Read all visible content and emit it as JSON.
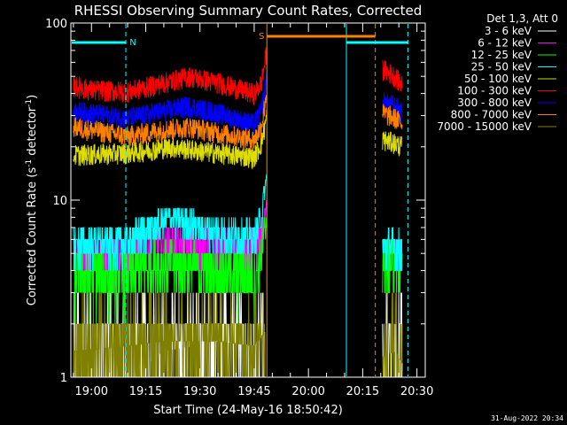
{
  "chart_data": {
    "type": "line",
    "title": "RHESSI Observing Summary Count Rates, Corrected",
    "xlabel": "Start Time (24-May-16 18:50:42)",
    "ylabel_parts": [
      "Corrected Count Rate (s",
      "-1",
      " detector",
      "-1",
      ")"
    ],
    "yscale": "log",
    "ylim": [
      1,
      100
    ],
    "y_ticks": [
      "1",
      "10",
      "100"
    ],
    "xlim_min": [
      -5.7,
      92.3
    ],
    "x_ticks": [
      {
        "label": "19:00",
        "min": 0
      },
      {
        "label": "19:15",
        "min": 15
      },
      {
        "label": "19:30",
        "min": 30
      },
      {
        "label": "19:45",
        "min": 45
      },
      {
        "label": "20:00",
        "min": 60
      },
      {
        "label": "20:15",
        "min": 75
      },
      {
        "label": "20:30",
        "min": 90
      }
    ],
    "legend_title": "Det 1,3, Att 0",
    "series": [
      {
        "name": "3 - 6 keV",
        "color": "#ffffff",
        "segments": [
          [
            [
              -5,
              1.0
            ],
            [
              10,
              1.0
            ],
            [
              20,
              1.4
            ],
            [
              35,
              1.6
            ],
            [
              45,
              1.5
            ],
            [
              48,
              1.8
            ]
          ],
          [
            [
              80.5,
              1.3
            ],
            [
              84,
              1.4
            ],
            [
              86,
              1.2
            ]
          ]
        ]
      },
      {
        "name": "6 - 12 keV",
        "color": "#ff00ff",
        "segments": [
          [
            [
              -5,
              4.9
            ],
            [
              10,
              5.0
            ],
            [
              20,
              5.6
            ],
            [
              30,
              5.4
            ],
            [
              45,
              5.0
            ],
            [
              47,
              6.0
            ],
            [
              48.5,
              9.0
            ]
          ],
          [
            [
              80.5,
              4.8
            ],
            [
              84,
              5.0
            ],
            [
              86,
              4.6
            ]
          ]
        ]
      },
      {
        "name": "12 - 25 keV",
        "color": "#00ff00",
        "segments": [
          [
            [
              -5,
              3.8
            ],
            [
              10,
              3.9
            ],
            [
              20,
              4.4
            ],
            [
              30,
              4.1
            ],
            [
              45,
              3.8
            ],
            [
              47,
              5.0
            ],
            [
              48.5,
              8.0
            ]
          ],
          [
            [
              80.5,
              4.3
            ],
            [
              84,
              4.5
            ],
            [
              86,
              4.0
            ]
          ]
        ]
      },
      {
        "name": "25 - 50 keV",
        "color": "#00ffff",
        "segments": [
          [
            [
              -5,
              5.6
            ],
            [
              10,
              5.8
            ],
            [
              22,
              8.0
            ],
            [
              30,
              7.0
            ],
            [
              45,
              6.0
            ],
            [
              47,
              8.0
            ],
            [
              48.5,
              14.0
            ]
          ],
          [
            [
              80.5,
              5.3
            ],
            [
              84,
              5.4
            ],
            [
              86,
              5.0
            ]
          ]
        ]
      },
      {
        "name": "50 - 100 keV",
        "color": "#dddd00",
        "segments": [
          [
            [
              -5,
              18
            ],
            [
              10,
              18.5
            ],
            [
              22,
              20
            ],
            [
              30,
              19
            ],
            [
              45,
              17.5
            ],
            [
              47,
              21
            ],
            [
              48.5,
              30
            ]
          ],
          [
            [
              80.5,
              22
            ],
            [
              84,
              21
            ],
            [
              86,
              20
            ]
          ]
        ]
      },
      {
        "name": "100 - 300 keV",
        "color": "#ff0000",
        "segments": [
          [
            [
              -5,
              44
            ],
            [
              0,
              42
            ],
            [
              10,
              41
            ],
            [
              20,
              46
            ],
            [
              27,
              50
            ],
            [
              35,
              46
            ],
            [
              45,
              40
            ],
            [
              47,
              46
            ],
            [
              48.5,
              70
            ]
          ],
          [
            [
              80.5,
              55
            ],
            [
              84,
              50
            ],
            [
              86,
              44
            ]
          ]
        ]
      },
      {
        "name": "300 - 800 keV",
        "color": "#0000ff",
        "segments": [
          [
            [
              -5,
              32
            ],
            [
              10,
              29
            ],
            [
              20,
              32
            ],
            [
              27,
              34
            ],
            [
              35,
              31
            ],
            [
              45,
              27
            ],
            [
              47,
              32
            ],
            [
              48.5,
              50
            ]
          ],
          [
            [
              80.5,
              36
            ],
            [
              84,
              34
            ],
            [
              86,
              31
            ]
          ]
        ]
      },
      {
        "name": "800 - 7000 keV",
        "color": "#ff8000",
        "segments": [
          [
            [
              -5,
              26
            ],
            [
              10,
              23
            ],
            [
              20,
              25
            ],
            [
              27,
              26
            ],
            [
              35,
              24
            ],
            [
              45,
              22
            ],
            [
              47,
              26
            ],
            [
              48.5,
              42
            ]
          ],
          [
            [
              80.5,
              31
            ],
            [
              84,
              29
            ],
            [
              86,
              27
            ]
          ]
        ]
      },
      {
        "name": "7000 - 15000 keV",
        "color": "#808000",
        "segments": [
          [
            [
              -5,
              1.4
            ],
            [
              10,
              1.5
            ],
            [
              20,
              1.6
            ],
            [
              35,
              1.6
            ],
            [
              45,
              1.5
            ],
            [
              48,
              1.8
            ]
          ],
          [
            [
              80.5,
              1.3
            ],
            [
              84,
              1.4
            ],
            [
              86,
              1.2
            ]
          ]
        ]
      }
    ],
    "indicators": [
      {
        "label": "N",
        "color": "#00ffff",
        "x_start": -5.7,
        "x_end": 9.5
      },
      {
        "label": "S",
        "color": "#ff8000",
        "x_start": 48.5,
        "x_end": 78.5
      },
      {
        "label": "",
        "color": "#00ffff",
        "x_start": 70.5,
        "x_end": 87.5
      }
    ],
    "vlines": [
      {
        "color": "#00ffff",
        "min": 9.5,
        "dashed": true
      },
      {
        "color": "#ff8000",
        "min": 48.5,
        "dashed": false
      },
      {
        "color": "#00ffff",
        "min": 70.5,
        "dashed": false
      },
      {
        "color": "#ff8000",
        "min": 78.5,
        "dashed": true
      },
      {
        "color": "#00ffff",
        "min": 87.5,
        "dashed": true
      }
    ],
    "timestamp": "31-Aug-2022 20:34"
  }
}
